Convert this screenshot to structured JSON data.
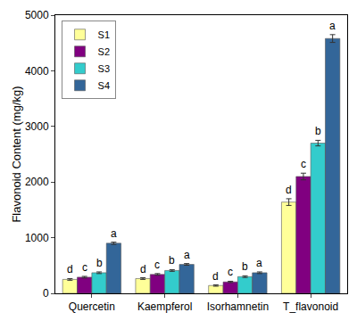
{
  "chart_data": {
    "type": "bar",
    "y_label": "Flavonoid Content (mg/kg)",
    "categories": [
      "Quercetin",
      "Kaempferol",
      "Isorhamnetin",
      "T_flavonoid"
    ],
    "series": [
      {
        "name": "S1",
        "color": "#ffff99",
        "values": [
          250,
          265,
          140,
          1640
        ],
        "errors": [
          15,
          15,
          12,
          60
        ],
        "letters": [
          "d",
          "d",
          "d",
          "d"
        ]
      },
      {
        "name": "S2",
        "color": "#800080",
        "values": [
          290,
          340,
          205,
          2100
        ],
        "errors": [
          15,
          15,
          12,
          60
        ],
        "letters": [
          "c",
          "c",
          "c",
          "c"
        ]
      },
      {
        "name": "S3",
        "color": "#33cccc",
        "values": [
          370,
          410,
          300,
          2700
        ],
        "errors": [
          15,
          15,
          15,
          50
        ],
        "letters": [
          "b",
          "b",
          "b",
          "b"
        ]
      },
      {
        "name": "S4",
        "color": "#336699",
        "values": [
          900,
          520,
          370,
          4580
        ],
        "errors": [
          20,
          15,
          15,
          70
        ],
        "letters": [
          "a",
          "a",
          "a",
          "a"
        ]
      }
    ],
    "ylim": [
      0,
      5000
    ],
    "yticks": [
      0,
      1000,
      2000,
      3000,
      4000,
      5000
    ],
    "grid": false,
    "legend": "upper left"
  }
}
